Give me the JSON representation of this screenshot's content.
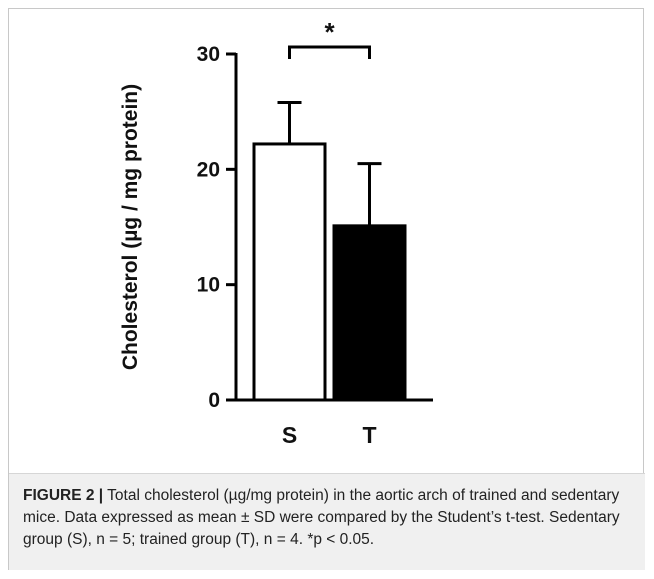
{
  "chart_data": {
    "type": "bar",
    "title": "",
    "xlabel": "",
    "ylabel": "Cholesterol (µg / mg protein)",
    "ylim": [
      0,
      30
    ],
    "yticks": [
      0,
      10,
      20,
      30
    ],
    "categories": [
      "S",
      "T"
    ],
    "values": [
      22.2,
      15.1
    ],
    "errors": [
      3.6,
      5.4
    ],
    "fills": [
      "#ffffff",
      "#000000"
    ],
    "significance": {
      "between": [
        "S",
        "T"
      ],
      "label": "*"
    },
    "grid": false,
    "legend": "none"
  },
  "caption": {
    "figure_label": "FIGURE 2 |",
    "text": " Total cholesterol (µg/mg protein) in the aortic arch of trained and sedentary mice. Data expressed as mean ± SD were compared by the Student’s t-test. Sedentary group (S), n = 5; trained group (T), n = 4. *p < 0.05."
  },
  "colors": {
    "caption_background": "#f0f0f0",
    "frame_border": "#c8c8c8"
  }
}
